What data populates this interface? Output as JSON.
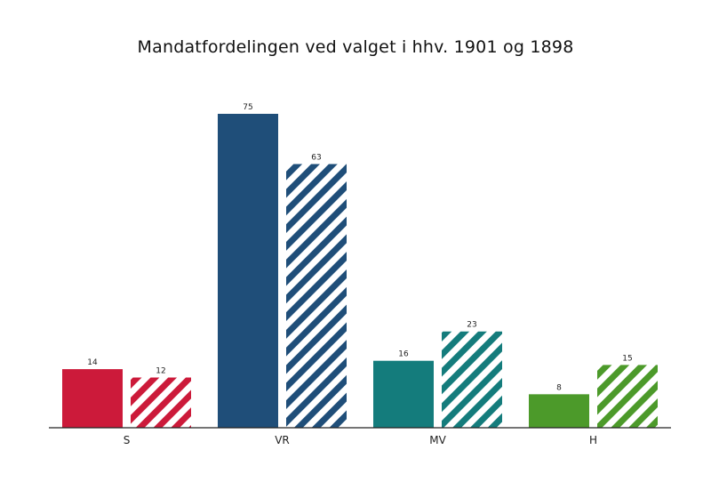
{
  "chart_data": {
    "type": "bar",
    "title": "Mandatfordelingen ved valget i hhv. 1901 og 1898",
    "xlabel": "",
    "ylabel": "",
    "ylim": [
      0,
      75
    ],
    "grid": false,
    "legend": "none",
    "categories": [
      "S",
      "VR",
      "MV",
      "H"
    ],
    "colors": [
      "#cc1a3a",
      "#1f4e79",
      "#147c7c",
      "#4c9a2a"
    ],
    "series": [
      {
        "pattern": "solid",
        "values": [
          14,
          75,
          16,
          8
        ]
      },
      {
        "pattern": "hatched",
        "values": [
          12,
          63,
          23,
          15
        ]
      }
    ]
  }
}
